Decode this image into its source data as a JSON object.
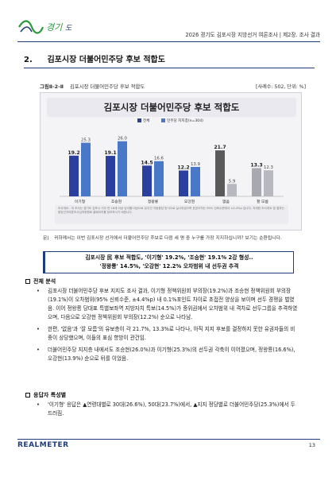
{
  "header": {
    "title": "2026 경기도 김포시장 지방선거 여론조사  |  제2장. 조사 결과",
    "colors": {
      "brand": "#1f3d7a",
      "logo_green": "#2e9a3c"
    }
  },
  "section": {
    "number": "2.",
    "title": "김포시장 더불어민주당 후보 적합도"
  },
  "figure": {
    "number": "그림Ⅱ-2-Ⅱ",
    "caption": "김포시장 더불어민주당 후보 적합도",
    "unit": "[사례수: 502, 단위: %]"
  },
  "chart_data": {
    "type": "bar",
    "title": "김포시장 더불어민주당 후보 적합도",
    "categories": [
      "이기형",
      "조승현",
      "정왕룡",
      "오강현",
      "없음",
      "잘 모름"
    ],
    "series": [
      {
        "name": "전체",
        "values": [
          19.2,
          19.1,
          14.5,
          12.2,
          21.7,
          13.3
        ],
        "color": "#2a3f9e"
      },
      {
        "name": "민주당 지지층(n=304)",
        "values": [
          25.3,
          26.0,
          16.6,
          13.9,
          5.9,
          12.3
        ],
        "color": "#4a78c8"
      }
    ],
    "special_bars": {
      "없음": "#5a5a5a",
      "잘 모름": "#a8a8b0"
    },
    "ylim": [
      0,
      30
    ],
    "grid": false,
    "legend_position": "top-center",
    "footnote": "조사개요 : 이 조사는 경기도 김포시 거주 만 18세 이상 남녀를 대상으로 유무선 자동응답 방식으로 실시되었으며 표본오차는 95% 신뢰수준에서 ±4.4%p 입니다. 자세한 조사개요 및 결과는 중앙선거여론조사심의위원회 홈페이지를 참조하시기 바랍니다."
  },
  "question": {
    "label": "문)",
    "text": "귀하께서는 이번 김포시장 선거에서 더불어민주당 후보로 다음 세 명 중 누구를 가장 지지하십니까? 보기는 순환됩니다."
  },
  "summary": {
    "line1": "김포시장 民 후보 적합도, '이기형' 19.2%, '조승현' 19.1% 2강 형성..",
    "line2": "'정왕룡' 14.5%, '오강현' 12.2% 오차범위 내 선두권 추격"
  },
  "analysis": {
    "heading": "전체 분석",
    "items": [
      "김포시장 더불어민주당 후보 지지도 조사 결과, 이기형 정책위원회 부의장(19.2%)과 조승현 정책위원회 부의장(19.1%)이 오차범위(95% 신뢰수준, ±4.4%p) 내 0.1%포인트 차이로 초접전 양상을 보이며 선두 경쟁을 벌였음. 이어 정왕룡 당대표 특별보좌역 지방자치 특보(14.5%)가 중위권에서 오차범위 내 격차로 선두그룹을 추격하였으며, 다음으로 오강현 정책위원회 부의장(12.2%) 순으로 나타남.",
      "한편, '없음'과 '잘 모름'의 유보층이 각 21.7%, 13.3%로 나타나, 아직 지지 후보를 결정하지 못한 유권자들의 비중이 상당했으며, 이들의 표심 향방이 관건임.",
      "더불어민주당 지지층 내에서도 조승현(26.0%)과 이기형(25.3%)의 선두권 각축이 이어졌으며, 정왕룡(16.6%), 오강현(13.9%) 순으로 뒤를 이었음."
    ]
  },
  "characteristics": {
    "heading": "응답자 특성별",
    "items": [
      "'이기형' 응답은 ▲연령대별로 30대(26.6%), 50대(23.7%)에서, ▲지지 정당별로 더불어민주당(25.3%)에서 두드러짐."
    ]
  },
  "footer": {
    "logo": "REALMETER",
    "page": "13"
  }
}
